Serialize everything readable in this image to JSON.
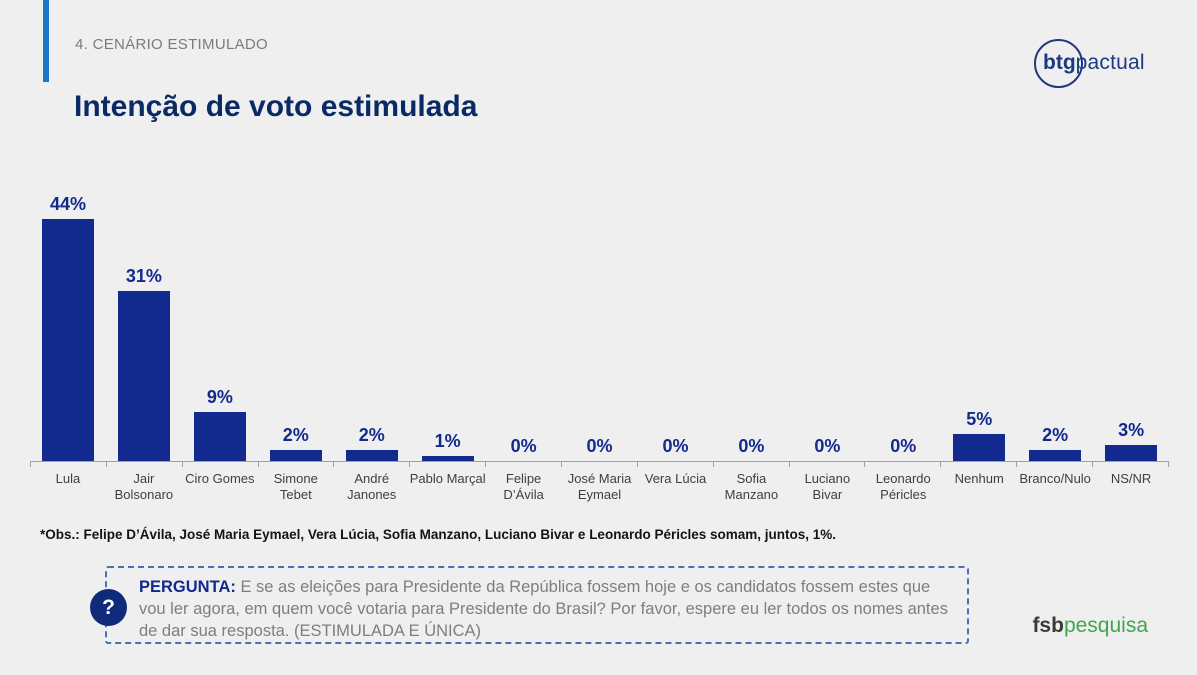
{
  "slide": {
    "section_label": "4. CENÁRIO ESTIMULADO",
    "title": "Intenção de voto estimulada",
    "background_color": "#EFEFEF",
    "accent_color": "#1778C8"
  },
  "logos": {
    "btg_bold": "btg",
    "btg_light": "pactual",
    "fsb_bold": "fsb",
    "fsb_light": "pesquisa"
  },
  "chart_data": {
    "type": "bar",
    "title": "Intenção de voto estimulada",
    "categories": [
      "Lula",
      "Jair Bolsonaro",
      "Ciro Gomes",
      "Simone Tebet",
      "André Janones",
      "Pablo Marçal",
      "Felipe D’Ávila",
      "José Maria Eymael",
      "Vera Lúcia",
      "Sofia Manzano",
      "Luciano Bivar",
      "Leonardo Péricles",
      "Nenhum",
      "Branco/Nulo",
      "NS/NR"
    ],
    "category_lines": [
      [
        "Lula"
      ],
      [
        "Jair",
        "Bolsonaro"
      ],
      [
        "Ciro Gomes"
      ],
      [
        "Simone",
        "Tebet"
      ],
      [
        "André",
        "Janones"
      ],
      [
        "Pablo Marçal"
      ],
      [
        "Felipe",
        "D’Ávila"
      ],
      [
        "José Maria",
        "Eymael"
      ],
      [
        "Vera Lúcia"
      ],
      [
        "Sofia",
        "Manzano"
      ],
      [
        "Luciano Bivar"
      ],
      [
        "Leonardo",
        "Péricles"
      ],
      [
        "Nenhum"
      ],
      [
        "Branco/Nulo"
      ],
      [
        "NS/NR"
      ]
    ],
    "values": [
      44,
      31,
      9,
      2,
      2,
      1,
      0,
      0,
      0,
      0,
      0,
      0,
      5,
      2,
      3
    ],
    "value_labels": [
      "44%",
      "31%",
      "9%",
      "2%",
      "2%",
      "1%",
      "0%",
      "0%",
      "0%",
      "0%",
      "0%",
      "0%",
      "5%",
      "2%",
      "3%"
    ],
    "unit": "%",
    "bar_color": "#12298D",
    "label_color": "#12298D",
    "axis_color": "#A0A0A0",
    "ylim": [
      0,
      53
    ],
    "grid": false,
    "legend": "none"
  },
  "note": "*Obs.: Felipe D’Ávila, José Maria Eymael, Vera Lúcia, Sofia Manzano, Luciano Bivar e Leonardo Péricles somam, juntos, 1%.",
  "question": {
    "icon": "?",
    "label": "PERGUNTA:",
    "text": "E se as eleições para Presidente da República fossem hoje e os candidatos fossem estes que vou ler agora, em quem você votaria para Presidente do Brasil? Por favor, espere eu ler todos os nomes antes de dar sua resposta. (ESTIMULADA E ÚNICA)"
  }
}
